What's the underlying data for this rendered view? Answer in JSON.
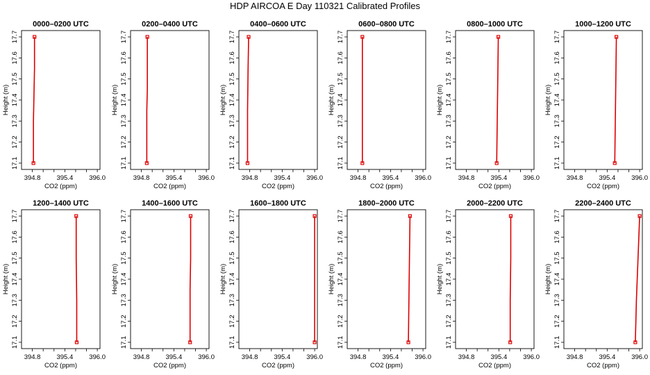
{
  "figure": {
    "title": "HDP AIRCOA E  Day 110321  Calibrated Profiles"
  },
  "colors": {
    "series": "#dd0000",
    "axis": "#000000",
    "background": "#ffffff"
  },
  "chart_data": [
    {
      "type": "line",
      "title": "0000–0200 UTC",
      "xlabel": "CO2 (ppm)",
      "ylabel": "Height (m)",
      "xlim": [
        394.6,
        396.05
      ],
      "ylim": [
        17.07,
        17.73
      ],
      "xticks": [
        "394.8",
        "395.4",
        "396.0"
      ],
      "yticks": [
        "17.1",
        "17.2",
        "17.3",
        "17.4",
        "17.5",
        "17.6",
        "17.7"
      ],
      "series": [
        {
          "x": [
            394.82,
            394.82,
            394.84,
            394.84
          ],
          "y": [
            17.1,
            17.3,
            17.55,
            17.7
          ]
        }
      ],
      "markers": [
        {
          "x": 394.82,
          "y": 17.1
        },
        {
          "x": 394.84,
          "y": 17.7
        }
      ]
    },
    {
      "type": "line",
      "title": "0200–0400 UTC",
      "xlabel": "CO2 (ppm)",
      "ylabel": "Height (m)",
      "xlim": [
        394.6,
        396.05
      ],
      "ylim": [
        17.07,
        17.73
      ],
      "xticks": [
        "394.8",
        "395.4",
        "396.0"
      ],
      "yticks": [
        "17.1",
        "17.2",
        "17.3",
        "17.4",
        "17.5",
        "17.6",
        "17.7"
      ],
      "series": [
        {
          "x": [
            394.9,
            394.9,
            394.91,
            394.91
          ],
          "y": [
            17.1,
            17.35,
            17.45,
            17.7
          ]
        }
      ],
      "markers": [
        {
          "x": 394.9,
          "y": 17.1
        },
        {
          "x": 394.91,
          "y": 17.7
        }
      ]
    },
    {
      "type": "line",
      "title": "0400–0600 UTC",
      "xlabel": "CO2 (ppm)",
      "ylabel": "Height (m)",
      "xlim": [
        394.6,
        396.05
      ],
      "ylim": [
        17.07,
        17.73
      ],
      "xticks": [
        "394.8",
        "395.4",
        "396.0"
      ],
      "yticks": [
        "17.1",
        "17.2",
        "17.3",
        "17.4",
        "17.5",
        "17.6",
        "17.7"
      ],
      "series": [
        {
          "x": [
            394.76,
            394.76,
            394.77,
            394.78
          ],
          "y": [
            17.1,
            17.35,
            17.55,
            17.7
          ]
        }
      ],
      "markers": [
        {
          "x": 394.76,
          "y": 17.1
        },
        {
          "x": 394.78,
          "y": 17.7
        }
      ]
    },
    {
      "type": "line",
      "title": "0600–0800 UTC",
      "xlabel": "CO2 (ppm)",
      "ylabel": "Height (m)",
      "xlim": [
        394.6,
        396.05
      ],
      "ylim": [
        17.07,
        17.73
      ],
      "xticks": [
        "394.8",
        "395.4",
        "396.0"
      ],
      "yticks": [
        "17.1",
        "17.2",
        "17.3",
        "17.4",
        "17.5",
        "17.6",
        "17.7"
      ],
      "series": [
        {
          "x": [
            394.88,
            394.88,
            394.88,
            394.88
          ],
          "y": [
            17.1,
            17.3,
            17.5,
            17.7
          ]
        }
      ],
      "markers": [
        {
          "x": 394.88,
          "y": 17.1
        },
        {
          "x": 394.88,
          "y": 17.7
        }
      ]
    },
    {
      "type": "line",
      "title": "0800–1000 UTC",
      "xlabel": "CO2 (ppm)",
      "ylabel": "Height (m)",
      "xlim": [
        394.6,
        396.05
      ],
      "ylim": [
        17.07,
        17.73
      ],
      "xticks": [
        "394.8",
        "395.4",
        "396.0"
      ],
      "yticks": [
        "17.1",
        "17.2",
        "17.3",
        "17.4",
        "17.5",
        "17.6",
        "17.7"
      ],
      "series": [
        {
          "x": [
            395.36,
            395.37,
            395.38,
            395.39
          ],
          "y": [
            17.1,
            17.3,
            17.5,
            17.7
          ]
        }
      ],
      "markers": [
        {
          "x": 395.36,
          "y": 17.1
        },
        {
          "x": 395.39,
          "y": 17.7
        }
      ]
    },
    {
      "type": "line",
      "title": "1000–1200 UTC",
      "xlabel": "CO2 (ppm)",
      "ylabel": "Height (m)",
      "xlim": [
        394.6,
        396.05
      ],
      "ylim": [
        17.07,
        17.73
      ],
      "xticks": [
        "394.8",
        "395.4",
        "396.0"
      ],
      "yticks": [
        "17.1",
        "17.2",
        "17.3",
        "17.4",
        "17.5",
        "17.6",
        "17.7"
      ],
      "series": [
        {
          "x": [
            395.54,
            395.55,
            395.56,
            395.57
          ],
          "y": [
            17.1,
            17.3,
            17.5,
            17.7
          ]
        }
      ],
      "markers": [
        {
          "x": 395.54,
          "y": 17.1
        },
        {
          "x": 395.57,
          "y": 17.7
        }
      ]
    },
    {
      "type": "line",
      "title": "1200–1400 UTC",
      "xlabel": "CO2 (ppm)",
      "ylabel": "Height (m)",
      "xlim": [
        394.6,
        396.05
      ],
      "ylim": [
        17.07,
        17.73
      ],
      "xticks": [
        "394.8",
        "395.4",
        "396.0"
      ],
      "yticks": [
        "17.1",
        "17.2",
        "17.3",
        "17.4",
        "17.5",
        "17.6",
        "17.7"
      ],
      "series": [
        {
          "x": [
            395.62,
            395.62,
            395.61,
            395.61
          ],
          "y": [
            17.1,
            17.3,
            17.5,
            17.7
          ]
        }
      ],
      "markers": [
        {
          "x": 395.62,
          "y": 17.1
        },
        {
          "x": 395.61,
          "y": 17.7
        }
      ]
    },
    {
      "type": "line",
      "title": "1400–1600 UTC",
      "xlabel": "CO2 (ppm)",
      "ylabel": "Height (m)",
      "xlim": [
        394.6,
        396.05
      ],
      "ylim": [
        17.07,
        17.73
      ],
      "xticks": [
        "394.8",
        "395.4",
        "396.0"
      ],
      "yticks": [
        "17.1",
        "17.2",
        "17.3",
        "17.4",
        "17.5",
        "17.6",
        "17.7"
      ],
      "series": [
        {
          "x": [
            395.7,
            395.7,
            395.71,
            395.71
          ],
          "y": [
            17.1,
            17.35,
            17.5,
            17.7
          ]
        }
      ],
      "markers": [
        {
          "x": 395.7,
          "y": 17.1
        },
        {
          "x": 395.71,
          "y": 17.7
        }
      ]
    },
    {
      "type": "line",
      "title": "1600–1800 UTC",
      "xlabel": "CO2 (ppm)",
      "ylabel": "Height (m)",
      "xlim": [
        394.6,
        396.05
      ],
      "ylim": [
        17.07,
        17.73
      ],
      "xticks": [
        "394.8",
        "395.4",
        "396.0"
      ],
      "yticks": [
        "17.1",
        "17.2",
        "17.3",
        "17.4",
        "17.5",
        "17.6",
        "17.7"
      ],
      "series": [
        {
          "x": [
            396.0,
            396.0,
            396.0,
            396.0
          ],
          "y": [
            17.1,
            17.3,
            17.5,
            17.7
          ]
        }
      ],
      "markers": [
        {
          "x": 396.0,
          "y": 17.1
        },
        {
          "x": 396.0,
          "y": 17.7
        }
      ]
    },
    {
      "type": "line",
      "title": "1800–2000 UTC",
      "xlabel": "CO2 (ppm)",
      "ylabel": "Height (m)",
      "xlim": [
        394.6,
        396.05
      ],
      "ylim": [
        17.07,
        17.73
      ],
      "xticks": [
        "394.8",
        "395.4",
        "396.0"
      ],
      "yticks": [
        "17.1",
        "17.2",
        "17.3",
        "17.4",
        "17.5",
        "17.6",
        "17.7"
      ],
      "series": [
        {
          "x": [
            395.73,
            395.74,
            395.75,
            395.76
          ],
          "y": [
            17.1,
            17.3,
            17.5,
            17.7
          ]
        }
      ],
      "markers": [
        {
          "x": 395.73,
          "y": 17.1
        },
        {
          "x": 395.76,
          "y": 17.7
        }
      ]
    },
    {
      "type": "line",
      "title": "2000–2200 UTC",
      "xlabel": "CO2 (ppm)",
      "ylabel": "Height (m)",
      "xlim": [
        394.6,
        396.05
      ],
      "ylim": [
        17.07,
        17.73
      ],
      "xticks": [
        "394.8",
        "395.4",
        "396.0"
      ],
      "yticks": [
        "17.1",
        "17.2",
        "17.3",
        "17.4",
        "17.5",
        "17.6",
        "17.7"
      ],
      "series": [
        {
          "x": [
            395.61,
            395.61,
            395.62,
            395.62
          ],
          "y": [
            17.1,
            17.3,
            17.5,
            17.7
          ]
        }
      ],
      "markers": [
        {
          "x": 395.61,
          "y": 17.1
        },
        {
          "x": 395.62,
          "y": 17.7
        }
      ]
    },
    {
      "type": "line",
      "title": "2200–2400 UTC",
      "xlabel": "CO2 (ppm)",
      "ylabel": "Height (m)",
      "xlim": [
        394.6,
        396.05
      ],
      "ylim": [
        17.07,
        17.73
      ],
      "xticks": [
        "394.8",
        "395.4",
        "396.0"
      ],
      "yticks": [
        "17.1",
        "17.2",
        "17.3",
        "17.4",
        "17.5",
        "17.6",
        "17.7"
      ],
      "series": [
        {
          "x": [
            395.92,
            395.94,
            395.97,
            396.0
          ],
          "y": [
            17.1,
            17.3,
            17.5,
            17.7
          ]
        }
      ],
      "markers": [
        {
          "x": 395.92,
          "y": 17.1
        },
        {
          "x": 396.0,
          "y": 17.7
        }
      ]
    }
  ]
}
